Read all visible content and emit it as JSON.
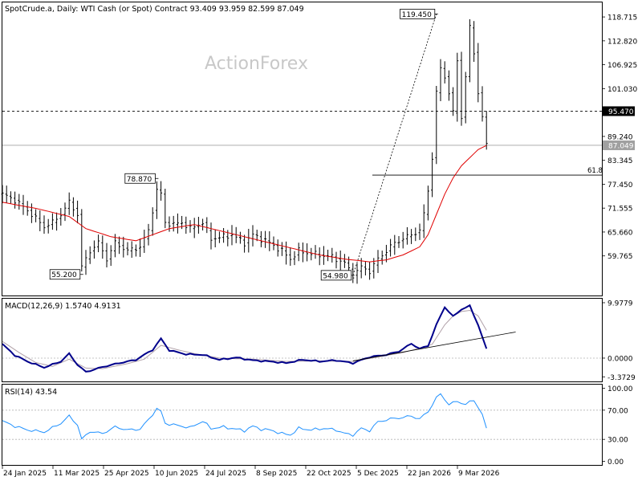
{
  "header": {
    "text": "SpotCrude.a, Daily:  WTI Cash (or Spot) Contract  93.409 93.959 82.599 87.049"
  },
  "watermark": "ActionForex",
  "colors": {
    "price": "#000000",
    "ma": "#e00000",
    "macd": "#00008b",
    "signal": "#b0a0a8",
    "rsi": "#1e90ff",
    "grid": "#b4b4b4",
    "frame": "#000000"
  },
  "chart_data": [
    {
      "type": "line",
      "name": "price-panel",
      "ylim": [
        50,
        122.3
      ],
      "yticks": [
        "118.715",
        "112.820",
        "106.925",
        "101.030",
        "95.470",
        "89.240",
        "87.049",
        "83.345",
        "77.450",
        "71.555",
        "65.660",
        "59.765"
      ],
      "ytick_values": [
        118.715,
        112.82,
        106.925,
        101.03,
        95.47,
        89.24,
        87.049,
        83.345,
        77.45,
        71.555,
        65.66,
        59.765
      ],
      "level_dashed": 95.47,
      "level_current": 87.049,
      "fib_label": "61.8",
      "fib_level": 79.7,
      "annotations": [
        {
          "label": "119.450",
          "x": 104,
          "y": 119.45
        },
        {
          "label": "78.870",
          "x": 37,
          "y": 78.87
        },
        {
          "label": "55.200",
          "x": 19,
          "y": 55.2
        },
        {
          "label": "54.980",
          "x": 84,
          "y": 54.98
        }
      ],
      "projection": {
        "from": [
          84,
          54.98
        ],
        "to": [
          104,
          119.45
        ]
      },
      "close_keys": [
        [
          0,
          75
        ],
        [
          3,
          73.5
        ],
        [
          6,
          71
        ],
        [
          10,
          67
        ],
        [
          12,
          68
        ],
        [
          14,
          70
        ],
        [
          16,
          73
        ],
        [
          18,
          70
        ],
        [
          19,
          57
        ],
        [
          21,
          61
        ],
        [
          23,
          63
        ],
        [
          25,
          59
        ],
        [
          27,
          63
        ],
        [
          30,
          61
        ],
        [
          33,
          62
        ],
        [
          35,
          66
        ],
        [
          37,
          76
        ],
        [
          38,
          75
        ],
        [
          39,
          68
        ],
        [
          41,
          67.5
        ],
        [
          43,
          68
        ],
        [
          45,
          66.5
        ],
        [
          48,
          68
        ],
        [
          50,
          64
        ],
        [
          53,
          64.5
        ],
        [
          55,
          65
        ],
        [
          58,
          63
        ],
        [
          60,
          65
        ],
        [
          62,
          64
        ],
        [
          64,
          63
        ],
        [
          67,
          61
        ],
        [
          69,
          59
        ],
        [
          71,
          61
        ],
        [
          73,
          60.5
        ],
        [
          76,
          60
        ],
        [
          79,
          59.5
        ],
        [
          82,
          58
        ],
        [
          84,
          55
        ],
        [
          86,
          57
        ],
        [
          88,
          56
        ],
        [
          90,
          59
        ],
        [
          92,
          61
        ],
        [
          94,
          63
        ],
        [
          96,
          64
        ],
        [
          98,
          65
        ],
        [
          100,
          66
        ],
        [
          101,
          70
        ],
        [
          102,
          76
        ],
        [
          103,
          84
        ],
        [
          104,
          100
        ],
        [
          105,
          106
        ],
        [
          106,
          104
        ],
        [
          107,
          100
        ],
        [
          108,
          95
        ],
        [
          109,
          108
        ],
        [
          110,
          94
        ],
        [
          111,
          104
        ],
        [
          112,
          116
        ],
        [
          113,
          110
        ],
        [
          114,
          100
        ],
        [
          115,
          94
        ],
        [
          116,
          87
        ]
      ],
      "ma_keys": [
        [
          0,
          73
        ],
        [
          8,
          71.5
        ],
        [
          16,
          69.5
        ],
        [
          20,
          66.5
        ],
        [
          26,
          64.5
        ],
        [
          32,
          63.5
        ],
        [
          36,
          65
        ],
        [
          40,
          66.5
        ],
        [
          46,
          67.5
        ],
        [
          52,
          66
        ],
        [
          58,
          64.5
        ],
        [
          64,
          63
        ],
        [
          70,
          61.5
        ],
        [
          76,
          60
        ],
        [
          82,
          59
        ],
        [
          88,
          58.3
        ],
        [
          92,
          58.8
        ],
        [
          96,
          60
        ],
        [
          100,
          62
        ],
        [
          102,
          65
        ],
        [
          104,
          70
        ],
        [
          106,
          75
        ],
        [
          108,
          79
        ],
        [
          110,
          82
        ],
        [
          112,
          84
        ],
        [
          114,
          86
        ],
        [
          116,
          87
        ]
      ],
      "n_bars": 117
    },
    {
      "type": "line",
      "name": "macd-panel",
      "label": "MACD(12,26,9) 1.5740 4.9131",
      "ylim": [
        -4.2,
        10.7
      ],
      "yticks": [
        "9.9779",
        "0.0000",
        "-3.3729"
      ],
      "ytick_values": [
        9.9779,
        0,
        -3.3729
      ],
      "macd_keys": [
        [
          0,
          2.5
        ],
        [
          3,
          0.5
        ],
        [
          6,
          -0.6
        ],
        [
          10,
          -1.7
        ],
        [
          14,
          -0.6
        ],
        [
          16,
          0.8
        ],
        [
          18,
          -1.2
        ],
        [
          20,
          -2.5
        ],
        [
          24,
          -1.6
        ],
        [
          28,
          -0.9
        ],
        [
          32,
          -0.3
        ],
        [
          36,
          1.5
        ],
        [
          38,
          3.5
        ],
        [
          40,
          1.4
        ],
        [
          44,
          0.7
        ],
        [
          48,
          0.6
        ],
        [
          52,
          -0.3
        ],
        [
          56,
          0.1
        ],
        [
          60,
          -0.4
        ],
        [
          64,
          -0.6
        ],
        [
          68,
          -0.9
        ],
        [
          72,
          -0.3
        ],
        [
          76,
          -0.6
        ],
        [
          80,
          -0.4
        ],
        [
          84,
          -0.9
        ],
        [
          88,
          0.2
        ],
        [
          92,
          0.6
        ],
        [
          95,
          1.2
        ],
        [
          98,
          2.6
        ],
        [
          100,
          1.7
        ],
        [
          102,
          2.2
        ],
        [
          104,
          6.0
        ],
        [
          106,
          9.2
        ],
        [
          108,
          7.5
        ],
        [
          110,
          8.8
        ],
        [
          112,
          9.4
        ],
        [
          114,
          6.0
        ],
        [
          116,
          1.6
        ]
      ],
      "signal_keys": [
        [
          0,
          3.0
        ],
        [
          4,
          1.0
        ],
        [
          8,
          -0.8
        ],
        [
          12,
          -1.5
        ],
        [
          16,
          -0.2
        ],
        [
          20,
          -1.8
        ],
        [
          24,
          -1.9
        ],
        [
          30,
          -1.0
        ],
        [
          34,
          -0.2
        ],
        [
          38,
          2.3
        ],
        [
          42,
          1.5
        ],
        [
          46,
          0.8
        ],
        [
          52,
          0.0
        ],
        [
          60,
          -0.2
        ],
        [
          68,
          -0.6
        ],
        [
          76,
          -0.5
        ],
        [
          84,
          -0.6
        ],
        [
          90,
          0.2
        ],
        [
          96,
          1.0
        ],
        [
          100,
          1.8
        ],
        [
          103,
          2.5
        ],
        [
          106,
          6.0
        ],
        [
          108,
          7.6
        ],
        [
          110,
          8.4
        ],
        [
          112,
          8.6
        ],
        [
          114,
          7.6
        ],
        [
          116,
          5.0
        ]
      ],
      "trendline": {
        "from": [
          84,
          -0.5
        ],
        "to": [
          123,
          4.7
        ]
      }
    },
    {
      "type": "line",
      "name": "rsi-panel",
      "label": "RSI(14) 43.54",
      "ylim": [
        -5,
        105
      ],
      "yticks": [
        "100.00",
        "70.00",
        "30.00",
        "0.00"
      ],
      "ytick_values": [
        100,
        70,
        30,
        0
      ],
      "levels": [
        70,
        30
      ],
      "rsi_keys": [
        [
          0,
          55
        ],
        [
          3,
          48
        ],
        [
          6,
          43
        ],
        [
          10,
          40
        ],
        [
          12,
          46
        ],
        [
          14,
          52
        ],
        [
          16,
          62
        ],
        [
          18,
          50
        ],
        [
          19,
          30
        ],
        [
          21,
          41
        ],
        [
          24,
          38
        ],
        [
          27,
          47
        ],
        [
          30,
          43
        ],
        [
          33,
          44
        ],
        [
          35,
          57
        ],
        [
          37,
          72
        ],
        [
          38,
          68
        ],
        [
          39,
          52
        ],
        [
          42,
          49
        ],
        [
          45,
          46
        ],
        [
          48,
          55
        ],
        [
          50,
          45
        ],
        [
          53,
          47
        ],
        [
          56,
          44
        ],
        [
          58,
          42
        ],
        [
          60,
          48
        ],
        [
          62,
          44
        ],
        [
          64,
          43
        ],
        [
          67,
          38
        ],
        [
          69,
          36
        ],
        [
          71,
          45
        ],
        [
          74,
          43
        ],
        [
          77,
          45
        ],
        [
          80,
          43
        ],
        [
          82,
          38
        ],
        [
          84,
          36
        ],
        [
          86,
          45
        ],
        [
          88,
          42
        ],
        [
          90,
          54
        ],
        [
          93,
          58
        ],
        [
          96,
          60
        ],
        [
          98,
          62
        ],
        [
          100,
          58
        ],
        [
          102,
          68
        ],
        [
          104,
          87
        ],
        [
          105,
          92
        ],
        [
          107,
          78
        ],
        [
          109,
          82
        ],
        [
          111,
          78
        ],
        [
          113,
          84
        ],
        [
          115,
          64
        ],
        [
          116,
          44
        ]
      ]
    }
  ],
  "x_axis": {
    "labels": [
      "24 Jan 2025",
      "11 Mar 2025",
      "25 Apr 2025",
      "10 Jun 2025",
      "24 Jul 2025",
      "8 Sep 2025",
      "22 Oct 2025",
      "5 Dec 2025",
      "22 Jan 2026",
      "9 Mar 2026"
    ],
    "label_bars": [
      0,
      10,
      20,
      30,
      40,
      50,
      60,
      70,
      80,
      90
    ]
  }
}
